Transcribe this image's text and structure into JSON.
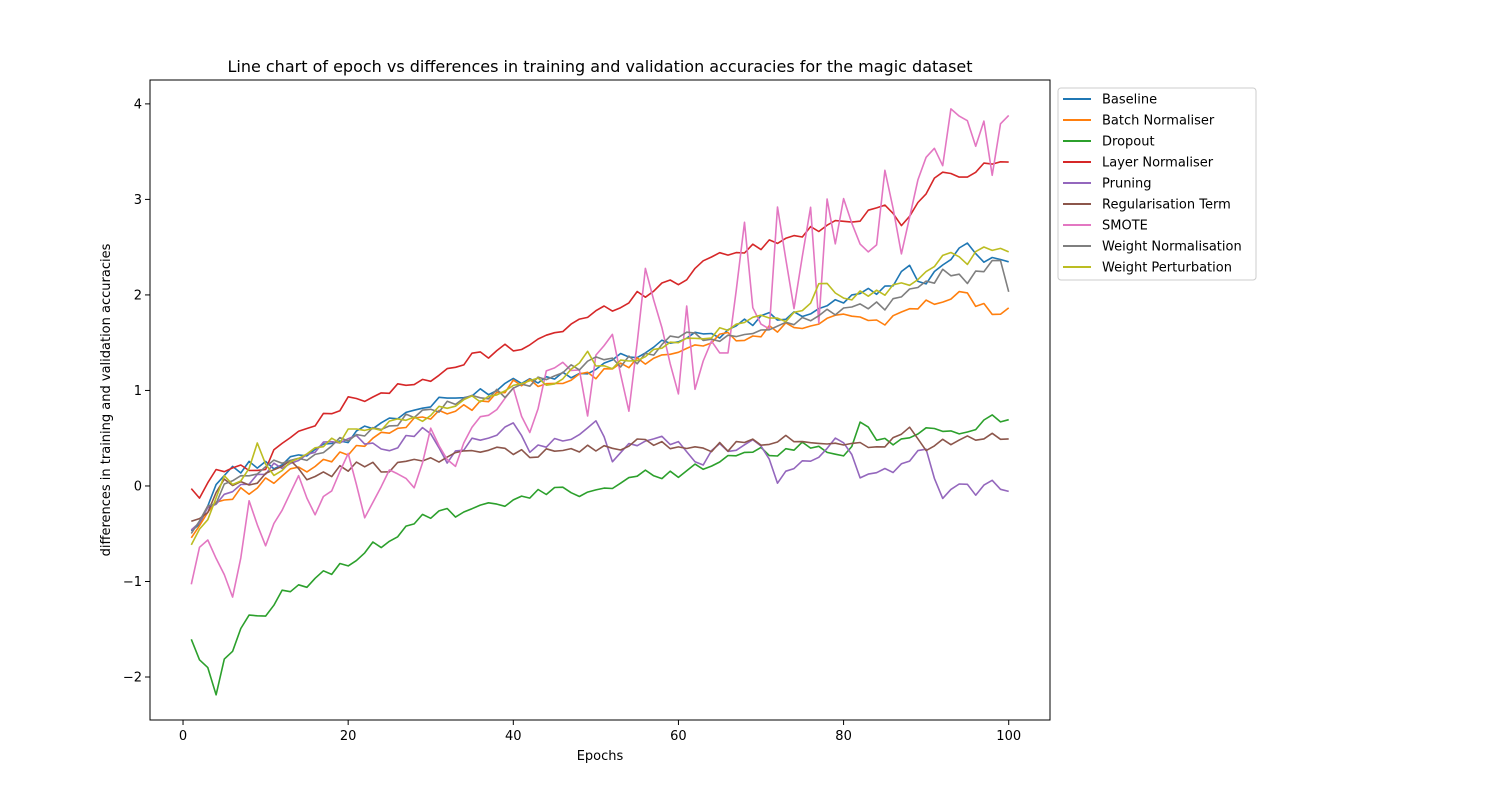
{
  "chart_data": {
    "type": "line",
    "title": "Line chart of epoch vs differences in training and validation accuracies for the magic dataset",
    "xlabel": "Epochs",
    "ylabel": "differences in training and validation accuracies",
    "xlim": [
      -4,
      105
    ],
    "ylim": [
      -2.45,
      4.25
    ],
    "x_ticks": [
      0,
      20,
      40,
      60,
      80,
      100
    ],
    "y_ticks": [
      -2,
      -1,
      0,
      1,
      2,
      3,
      4
    ],
    "y_tick_labels": [
      "−2",
      "−1",
      "0",
      "1",
      "2",
      "3",
      "4"
    ],
    "grid": false,
    "legend_position": "outside-top-right",
    "x_epochs": {
      "start": 1,
      "end": 100
    },
    "series": [
      {
        "name": "Baseline",
        "color": "#1f77b4",
        "knots": [
          [
            1,
            -0.5
          ],
          [
            3,
            -0.2
          ],
          [
            5,
            0.15
          ],
          [
            8,
            0.2
          ],
          [
            12,
            0.25
          ],
          [
            16,
            0.4
          ],
          [
            20,
            0.5
          ],
          [
            25,
            0.7
          ],
          [
            30,
            0.85
          ],
          [
            35,
            0.95
          ],
          [
            40,
            1.1
          ],
          [
            45,
            1.15
          ],
          [
            50,
            1.25
          ],
          [
            55,
            1.4
          ],
          [
            60,
            1.55
          ],
          [
            65,
            1.6
          ],
          [
            70,
            1.75
          ],
          [
            75,
            1.8
          ],
          [
            80,
            1.95
          ],
          [
            85,
            2.05
          ],
          [
            88,
            2.3
          ],
          [
            90,
            2.1
          ],
          [
            92,
            2.3
          ],
          [
            95,
            2.5
          ],
          [
            97,
            2.4
          ],
          [
            100,
            2.4
          ]
        ]
      },
      {
        "name": "Batch Normaliser",
        "color": "#ff7f0e",
        "knots": [
          [
            1,
            -0.55
          ],
          [
            3,
            -0.25
          ],
          [
            5,
            -0.1
          ],
          [
            8,
            -0.05
          ],
          [
            12,
            0.1
          ],
          [
            16,
            0.2
          ],
          [
            20,
            0.35
          ],
          [
            25,
            0.55
          ],
          [
            30,
            0.75
          ],
          [
            35,
            0.85
          ],
          [
            40,
            1.05
          ],
          [
            45,
            1.1
          ],
          [
            50,
            1.15
          ],
          [
            55,
            1.3
          ],
          [
            60,
            1.4
          ],
          [
            65,
            1.55
          ],
          [
            70,
            1.6
          ],
          [
            75,
            1.7
          ],
          [
            80,
            1.8
          ],
          [
            85,
            1.7
          ],
          [
            90,
            1.95
          ],
          [
            95,
            2.0
          ],
          [
            98,
            1.8
          ],
          [
            100,
            1.9
          ]
        ]
      },
      {
        "name": "Dropout",
        "color": "#2ca02c",
        "knots": [
          [
            1,
            -1.6
          ],
          [
            2,
            -1.8
          ],
          [
            3,
            -1.95
          ],
          [
            4,
            -2.13
          ],
          [
            5,
            -1.85
          ],
          [
            8,
            -1.32
          ],
          [
            10,
            -1.4
          ],
          [
            12,
            -1.15
          ],
          [
            15,
            -1.02
          ],
          [
            18,
            -0.9
          ],
          [
            20,
            -0.78
          ],
          [
            25,
            -0.55
          ],
          [
            30,
            -0.3
          ],
          [
            35,
            -0.28
          ],
          [
            40,
            -0.15
          ],
          [
            45,
            -0.05
          ],
          [
            50,
            -0.05
          ],
          [
            55,
            0.1
          ],
          [
            60,
            0.15
          ],
          [
            65,
            0.25
          ],
          [
            70,
            0.35
          ],
          [
            75,
            0.4
          ],
          [
            80,
            0.3
          ],
          [
            82,
            0.62
          ],
          [
            85,
            0.45
          ],
          [
            90,
            0.55
          ],
          [
            95,
            0.6
          ],
          [
            97,
            0.7
          ],
          [
            100,
            0.67
          ]
        ]
      },
      {
        "name": "Layer Normaliser",
        "color": "#d62728",
        "knots": [
          [
            1,
            0.0
          ],
          [
            2,
            -0.18
          ],
          [
            4,
            0.22
          ],
          [
            6,
            0.15
          ],
          [
            8,
            0.22
          ],
          [
            10,
            0.2
          ],
          [
            12,
            0.48
          ],
          [
            15,
            0.6
          ],
          [
            18,
            0.75
          ],
          [
            20,
            0.9
          ],
          [
            25,
            1.0
          ],
          [
            30,
            1.1
          ],
          [
            35,
            1.35
          ],
          [
            40,
            1.45
          ],
          [
            45,
            1.6
          ],
          [
            50,
            1.8
          ],
          [
            55,
            2.0
          ],
          [
            60,
            2.15
          ],
          [
            65,
            2.45
          ],
          [
            70,
            2.5
          ],
          [
            75,
            2.65
          ],
          [
            80,
            2.75
          ],
          [
            85,
            2.95
          ],
          [
            87,
            2.75
          ],
          [
            90,
            3.1
          ],
          [
            92,
            3.3
          ],
          [
            95,
            3.2
          ],
          [
            97,
            3.35
          ],
          [
            100,
            3.45
          ]
        ]
      },
      {
        "name": "Pruning",
        "color": "#9467bd",
        "knots": [
          [
            1,
            -0.5
          ],
          [
            5,
            -0.05
          ],
          [
            10,
            0.15
          ],
          [
            15,
            0.3
          ],
          [
            20,
            0.55
          ],
          [
            25,
            0.4
          ],
          [
            28,
            0.55
          ],
          [
            30,
            0.6
          ],
          [
            32,
            0.22
          ],
          [
            35,
            0.5
          ],
          [
            40,
            0.6
          ],
          [
            42,
            0.35
          ],
          [
            45,
            0.5
          ],
          [
            48,
            0.5
          ],
          [
            50,
            0.7
          ],
          [
            52,
            0.3
          ],
          [
            55,
            0.45
          ],
          [
            60,
            0.5
          ],
          [
            62,
            0.2
          ],
          [
            65,
            0.4
          ],
          [
            70,
            0.45
          ],
          [
            72,
            0.02
          ],
          [
            75,
            0.25
          ],
          [
            80,
            0.5
          ],
          [
            82,
            0.12
          ],
          [
            85,
            0.15
          ],
          [
            90,
            0.4
          ],
          [
            92,
            -0.15
          ],
          [
            94,
            0.05
          ],
          [
            96,
            -0.05
          ],
          [
            98,
            0.05
          ],
          [
            100,
            -0.03
          ]
        ]
      },
      {
        "name": "Regularisation Term",
        "color": "#8c564b",
        "knots": [
          [
            1,
            -0.4
          ],
          [
            3,
            -0.3
          ],
          [
            5,
            0.05
          ],
          [
            8,
            0.0
          ],
          [
            10,
            0.1
          ],
          [
            13,
            0.3
          ],
          [
            15,
            0.05
          ],
          [
            20,
            0.2
          ],
          [
            25,
            0.2
          ],
          [
            30,
            0.3
          ],
          [
            35,
            0.35
          ],
          [
            40,
            0.35
          ],
          [
            45,
            0.35
          ],
          [
            50,
            0.4
          ],
          [
            55,
            0.45
          ],
          [
            60,
            0.4
          ],
          [
            65,
            0.4
          ],
          [
            70,
            0.45
          ],
          [
            75,
            0.5
          ],
          [
            80,
            0.45
          ],
          [
            85,
            0.45
          ],
          [
            88,
            0.6
          ],
          [
            90,
            0.4
          ],
          [
            95,
            0.5
          ],
          [
            97,
            0.55
          ],
          [
            100,
            0.52
          ]
        ]
      },
      {
        "name": "SMOTE",
        "color": "#e377c2",
        "knots": [
          [
            1,
            -1.03
          ],
          [
            2,
            -0.65
          ],
          [
            3,
            -0.52
          ],
          [
            4,
            -0.75
          ],
          [
            5,
            -0.98
          ],
          [
            6,
            -1.12
          ],
          [
            7,
            -0.7
          ],
          [
            8,
            -0.2
          ],
          [
            10,
            -0.62
          ],
          [
            12,
            -0.2
          ],
          [
            14,
            0.15
          ],
          [
            16,
            -0.3
          ],
          [
            18,
            0.0
          ],
          [
            20,
            0.35
          ],
          [
            22,
            -0.3
          ],
          [
            25,
            0.2
          ],
          [
            28,
            0.02
          ],
          [
            30,
            0.55
          ],
          [
            33,
            0.2
          ],
          [
            35,
            0.6
          ],
          [
            38,
            0.8
          ],
          [
            40,
            1.0
          ],
          [
            42,
            0.5
          ],
          [
            44,
            1.2
          ],
          [
            46,
            1.25
          ],
          [
            48,
            1.2
          ],
          [
            49,
            0.75
          ],
          [
            50,
            1.4
          ],
          [
            52,
            1.6
          ],
          [
            54,
            0.8
          ],
          [
            56,
            2.3
          ],
          [
            58,
            1.6
          ],
          [
            60,
            1.0
          ],
          [
            61,
            1.85
          ],
          [
            62,
            1.05
          ],
          [
            64,
            1.5
          ],
          [
            66,
            1.4
          ],
          [
            68,
            2.8
          ],
          [
            69,
            1.9
          ],
          [
            71,
            1.6
          ],
          [
            72,
            2.95
          ],
          [
            74,
            1.9
          ],
          [
            76,
            2.9
          ],
          [
            77,
            1.75
          ],
          [
            78,
            3.0
          ],
          [
            79,
            2.5
          ],
          [
            80,
            3.0
          ],
          [
            82,
            2.5
          ],
          [
            84,
            2.5
          ],
          [
            85,
            3.3
          ],
          [
            87,
            2.4
          ],
          [
            89,
            3.25
          ],
          [
            91,
            3.55
          ],
          [
            92,
            3.3
          ],
          [
            93,
            3.95
          ],
          [
            95,
            3.8
          ],
          [
            96,
            3.5
          ],
          [
            97,
            3.78
          ],
          [
            98,
            3.25
          ],
          [
            99,
            3.8
          ],
          [
            100,
            3.9
          ]
        ]
      },
      {
        "name": "Weight Normalisation",
        "color": "#7f7f7f",
        "knots": [
          [
            1,
            -0.5
          ],
          [
            3,
            -0.25
          ],
          [
            5,
            0.0
          ],
          [
            8,
            0.1
          ],
          [
            12,
            0.25
          ],
          [
            16,
            0.35
          ],
          [
            20,
            0.5
          ],
          [
            25,
            0.65
          ],
          [
            30,
            0.8
          ],
          [
            35,
            0.9
          ],
          [
            40,
            1.0
          ],
          [
            45,
            1.15
          ],
          [
            50,
            1.3
          ],
          [
            55,
            1.3
          ],
          [
            60,
            1.6
          ],
          [
            65,
            1.5
          ],
          [
            70,
            1.65
          ],
          [
            75,
            1.75
          ],
          [
            80,
            1.85
          ],
          [
            85,
            1.9
          ],
          [
            90,
            2.1
          ],
          [
            92,
            2.25
          ],
          [
            95,
            2.15
          ],
          [
            97,
            2.25
          ],
          [
            99,
            2.35
          ],
          [
            100,
            2.05
          ]
        ]
      },
      {
        "name": "Weight Perturbation",
        "color": "#bcbd22",
        "knots": [
          [
            1,
            -0.62
          ],
          [
            3,
            -0.3
          ],
          [
            5,
            0.05
          ],
          [
            7,
            0.0
          ],
          [
            9,
            0.47
          ],
          [
            11,
            0.1
          ],
          [
            13,
            0.3
          ],
          [
            16,
            0.35
          ],
          [
            20,
            0.55
          ],
          [
            25,
            0.65
          ],
          [
            30,
            0.75
          ],
          [
            35,
            0.9
          ],
          [
            40,
            1.05
          ],
          [
            45,
            1.1
          ],
          [
            49,
            1.4
          ],
          [
            50,
            1.2
          ],
          [
            55,
            1.35
          ],
          [
            60,
            1.5
          ],
          [
            65,
            1.6
          ],
          [
            70,
            1.75
          ],
          [
            75,
            1.8
          ],
          [
            77,
            2.1
          ],
          [
            80,
            2.0
          ],
          [
            85,
            2.0
          ],
          [
            90,
            2.25
          ],
          [
            93,
            2.5
          ],
          [
            95,
            2.3
          ],
          [
            97,
            2.5
          ],
          [
            100,
            2.4
          ]
        ]
      }
    ]
  }
}
